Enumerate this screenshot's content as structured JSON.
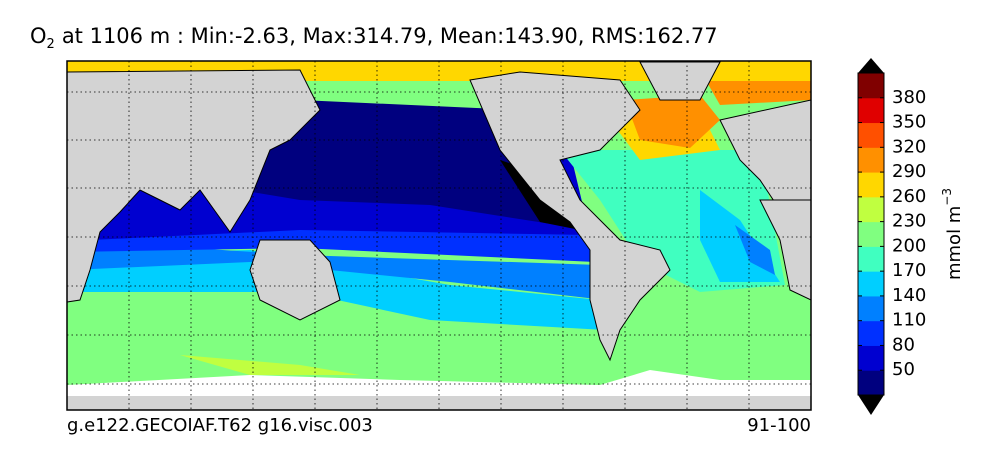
{
  "title": {
    "species": "O",
    "subscript": "2",
    "text": "at 1106 m : Min:-2.63, Max:314.79, Mean:143.90, RMS:162.77"
  },
  "colorbar": {
    "label": "mmol m",
    "label_exponent": "−3",
    "lim": [
      20,
      410
    ],
    "ticks": [
      50,
      80,
      110,
      140,
      170,
      200,
      230,
      260,
      290,
      320,
      350,
      380
    ],
    "colors": [
      "#00007f",
      "#0000d0",
      "#0030ff",
      "#0080ff",
      "#00cfff",
      "#40ffc0",
      "#80ff80",
      "#c0ff40",
      "#ffd700",
      "#ff9000",
      "#ff5000",
      "#e00000",
      "#800000"
    ]
  },
  "footer": {
    "left": "g.e122.GECOIAF.T62 g16.visc.003",
    "right": "91-100"
  }
}
